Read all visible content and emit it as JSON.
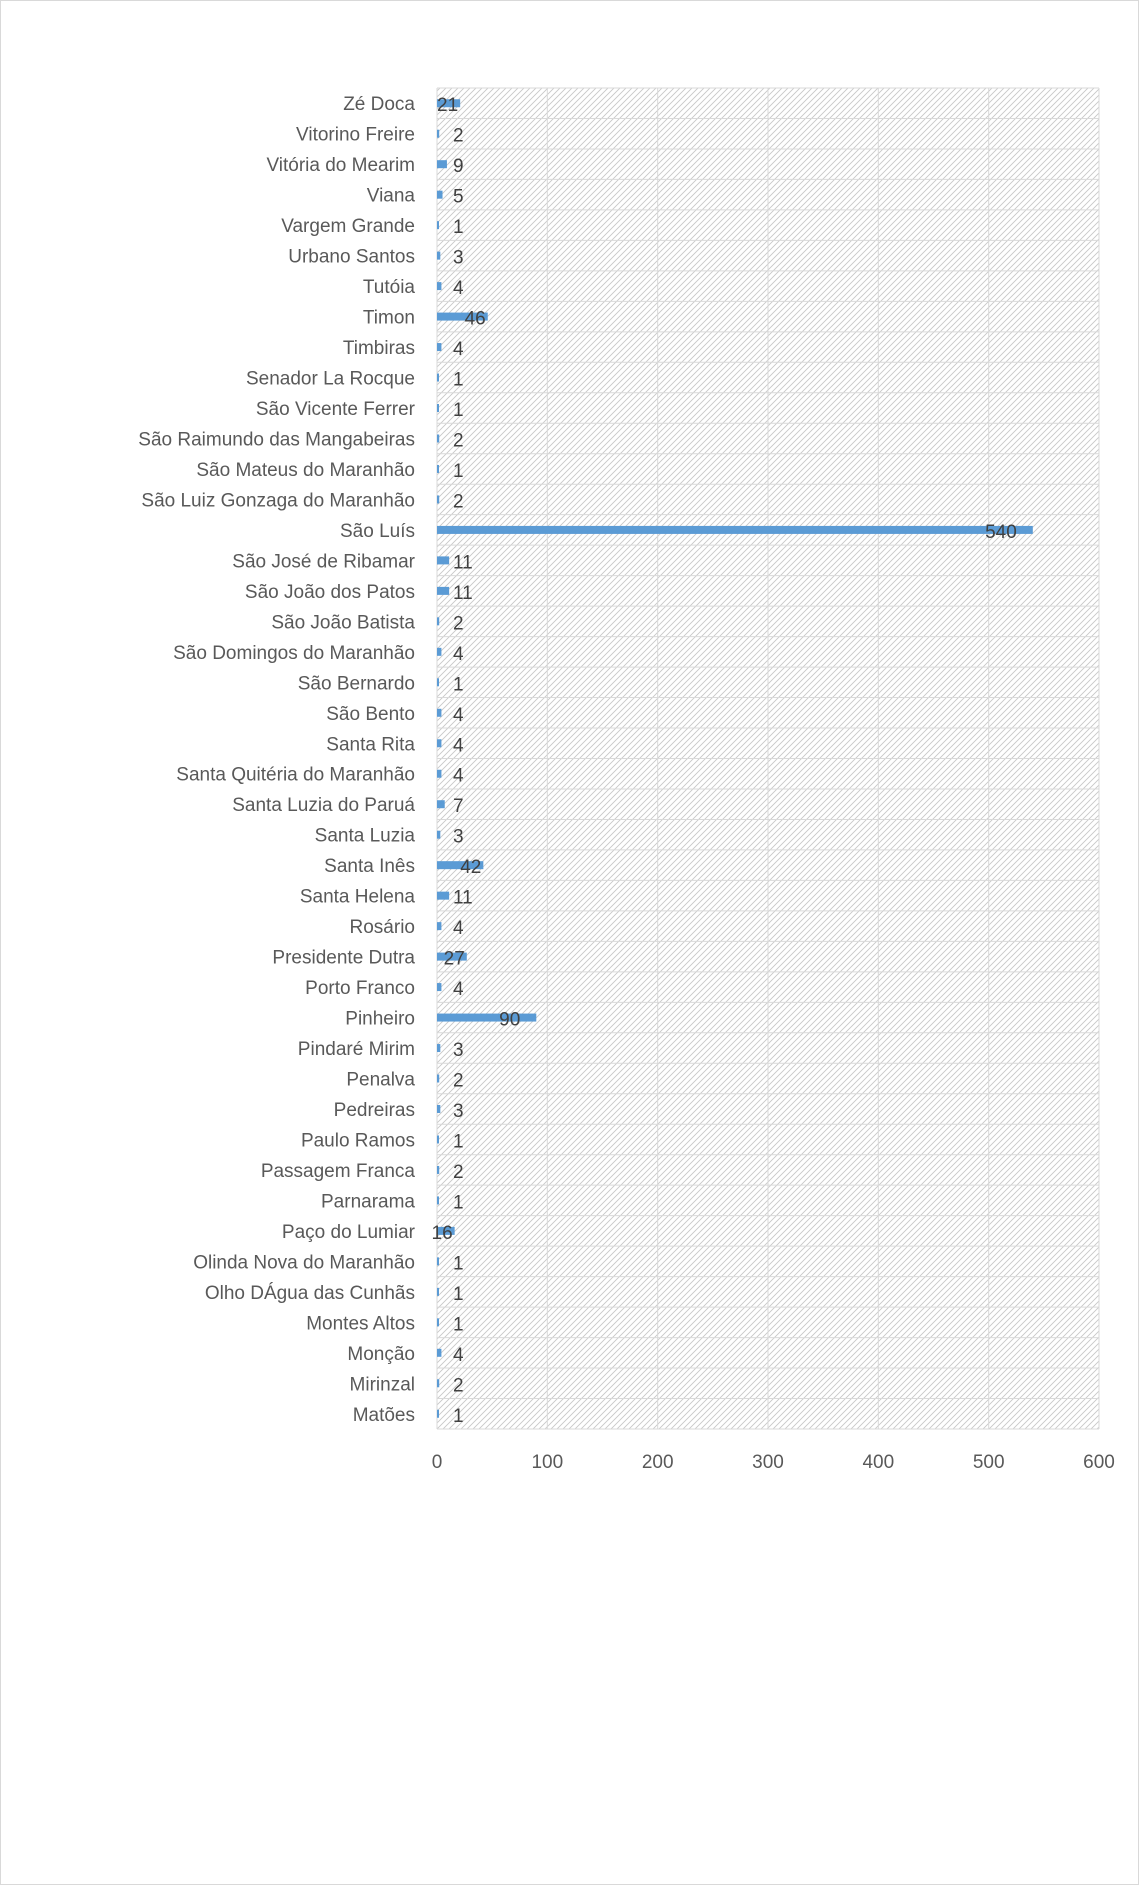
{
  "chart_data": {
    "type": "bar",
    "orientation": "horizontal",
    "categories": [
      "Zé Doca",
      "Vitorino Freire",
      "Vitória do Mearim",
      "Viana",
      "Vargem Grande",
      "Urbano Santos",
      "Tutóia",
      "Timon",
      "Timbiras",
      "Senador La Rocque",
      "São Vicente Ferrer",
      "São Raimundo das Mangabeiras",
      "São Mateus do Maranhão",
      "São Luiz Gonzaga do Maranhão",
      "São Luís",
      "São José de Ribamar",
      "São João dos Patos",
      "São João Batista",
      "São Domingos do Maranhão",
      "São Bernardo",
      "São Bento",
      "Santa Rita",
      "Santa Quitéria do Maranhão",
      "Santa Luzia do Paruá",
      "Santa Luzia",
      "Santa Inês",
      "Santa Helena",
      "Rosário",
      "Presidente Dutra",
      "Porto Franco",
      "Pinheiro",
      "Pindaré Mirim",
      "Penalva",
      "Pedreiras",
      "Paulo Ramos",
      "Passagem Franca",
      "Parnarama",
      "Paço do Lumiar",
      "Olinda Nova do Maranhão",
      "Olho DÁgua das Cunhãs",
      "Montes Altos",
      "Monção",
      "Mirinzal",
      "Matões"
    ],
    "values": [
      21,
      2,
      9,
      5,
      1,
      3,
      4,
      46,
      4,
      1,
      1,
      2,
      1,
      2,
      540,
      11,
      11,
      2,
      4,
      1,
      4,
      4,
      4,
      7,
      3,
      42,
      11,
      4,
      27,
      4,
      90,
      3,
      2,
      3,
      1,
      2,
      1,
      16,
      1,
      1,
      1,
      4,
      2,
      1
    ],
    "x_ticks": [
      "0",
      "100",
      "200",
      "300",
      "400",
      "500",
      "600"
    ],
    "xlim": [
      0,
      600
    ],
    "title": "",
    "xlabel": "",
    "ylabel": "",
    "grid": true,
    "legend": "none",
    "bar_color": "#5b9bd5",
    "plot_area_pattern": "diagonal-hatch"
  }
}
